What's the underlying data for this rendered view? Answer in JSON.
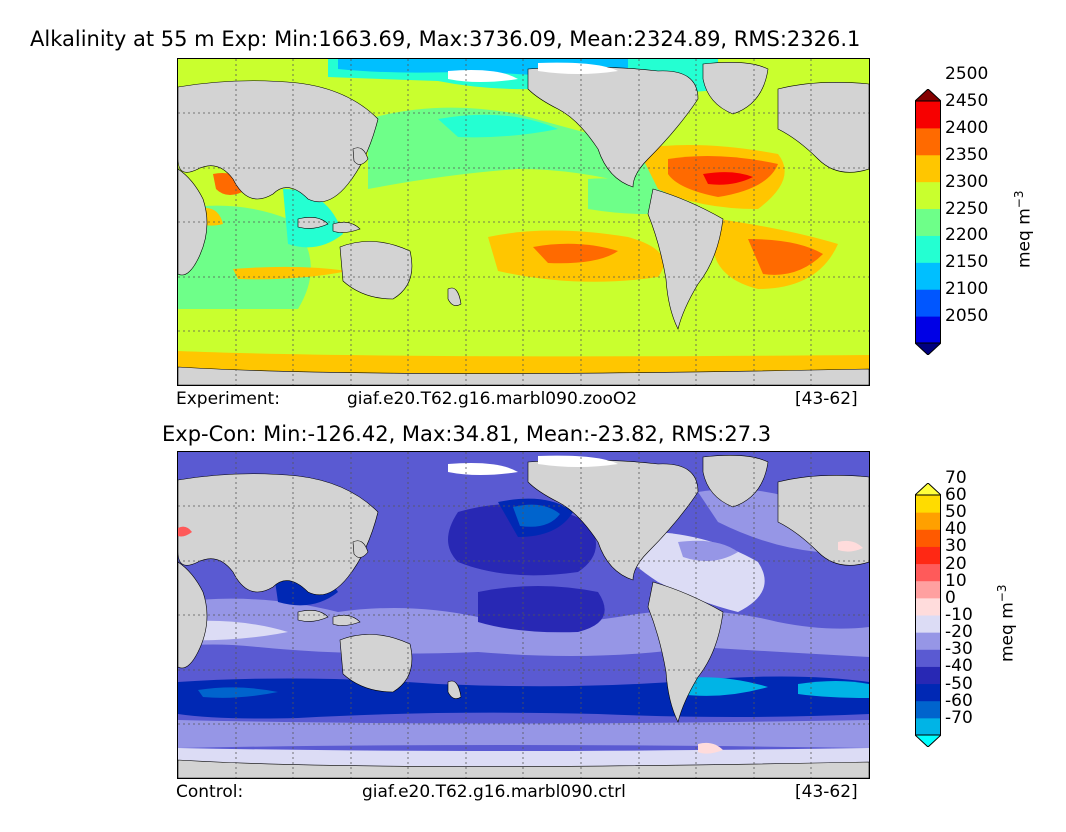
{
  "chart_data": [
    {
      "type": "heatmap",
      "title": "Alkalinity at 55 m Exp: Min:1663.69, Max:3736.09, Mean:2324.89, RMS:2326.1",
      "colorbar": {
        "label_prefix": "meq m",
        "label_exp": "−3",
        "levels": [
          "2050",
          "2100",
          "2150",
          "2200",
          "2250",
          "2300",
          "2350",
          "2400",
          "2450",
          "2500"
        ],
        "colors": [
          "#00007f",
          "#0000e6",
          "#0056ff",
          "#00bfff",
          "#24ffd2",
          "#6eff89",
          "#c9ff2e",
          "#ffc600",
          "#ff6a00",
          "#f70000",
          "#840000"
        ],
        "extend": "both"
      },
      "caption": {
        "label": "Experiment:",
        "case": "giaf.e20.T62.g16.marbl090.zooO2",
        "years": "[43-62]"
      }
    },
    {
      "type": "heatmap",
      "title": "Exp-Con: Min:-126.42, Max:34.81, Mean:-23.82, RMS:27.3",
      "colorbar": {
        "label_prefix": "meq m",
        "label_exp": "−3",
        "levels": [
          "-70",
          "-60",
          "-50",
          "-40",
          "-30",
          "-20",
          "-10",
          "0",
          "10",
          "20",
          "30",
          "40",
          "50",
          "60",
          "70"
        ],
        "colors": [
          "#00ffff",
          "#00b4e6",
          "#0064cd",
          "#0028b4",
          "#2828b4",
          "#5a5ad2",
          "#9696e6",
          "#dcdcf5",
          "#ffdcdc",
          "#ffa0a0",
          "#ff5a5a",
          "#ff2814",
          "#ff5a00",
          "#ffa000",
          "#ffdc00",
          "#ffff3c"
        ],
        "extend": "both"
      },
      "caption": {
        "label": "Control:",
        "case": "giaf.e20.T62.g16.marbl090.ctrl",
        "years": "[43-62]"
      }
    }
  ],
  "colors": {
    "land": "#d3d3d3",
    "grid": "#555555",
    "ice": "#ffffff"
  }
}
